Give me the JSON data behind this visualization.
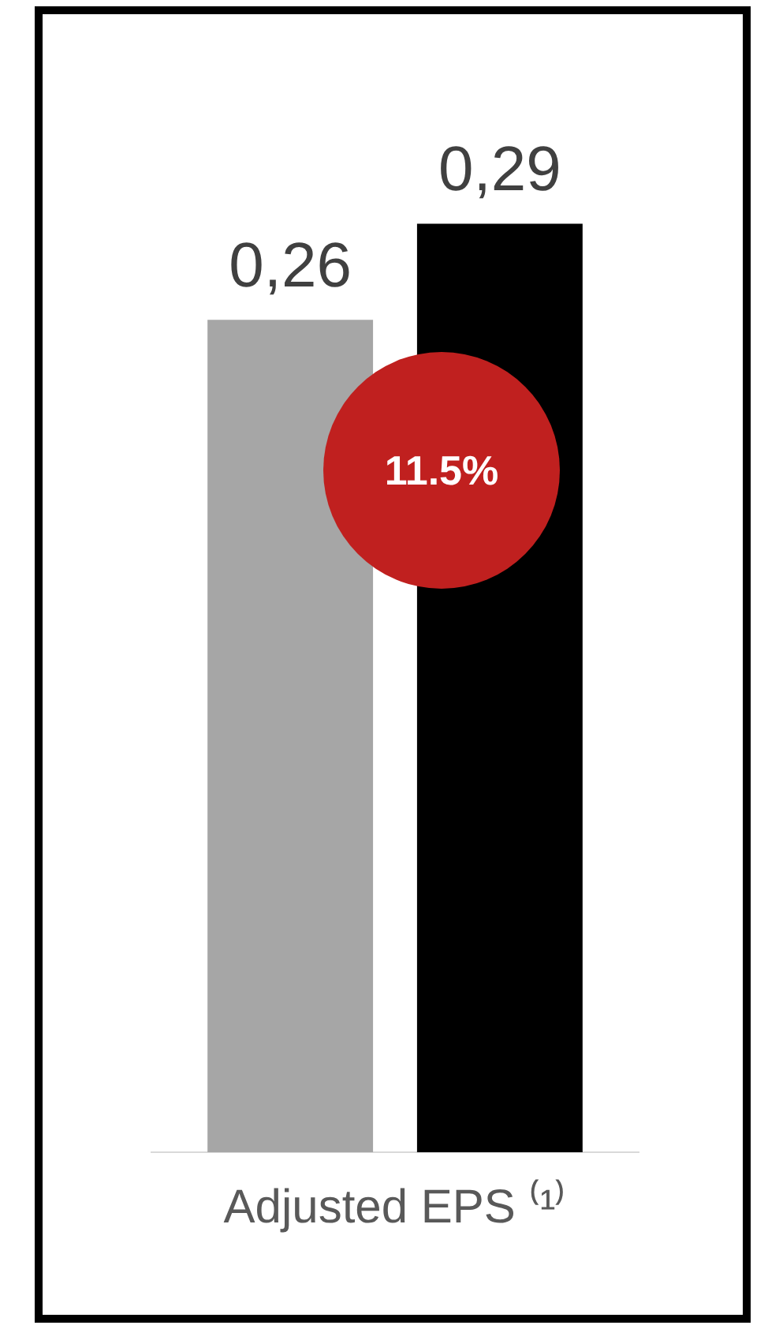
{
  "chart_data": {
    "type": "bar",
    "categories": [
      "Adjusted EPS ⁽¹⁾"
    ],
    "series": [
      {
        "color": "#a6a6a6",
        "values": [
          0.26
        ],
        "value_labels": [
          "0,26"
        ]
      },
      {
        "color": "#000000",
        "values": [
          0.29
        ],
        "value_labels": [
          "0,29"
        ]
      }
    ],
    "annotations": [
      "11.5%"
    ],
    "grid": false,
    "legend": false
  }
}
